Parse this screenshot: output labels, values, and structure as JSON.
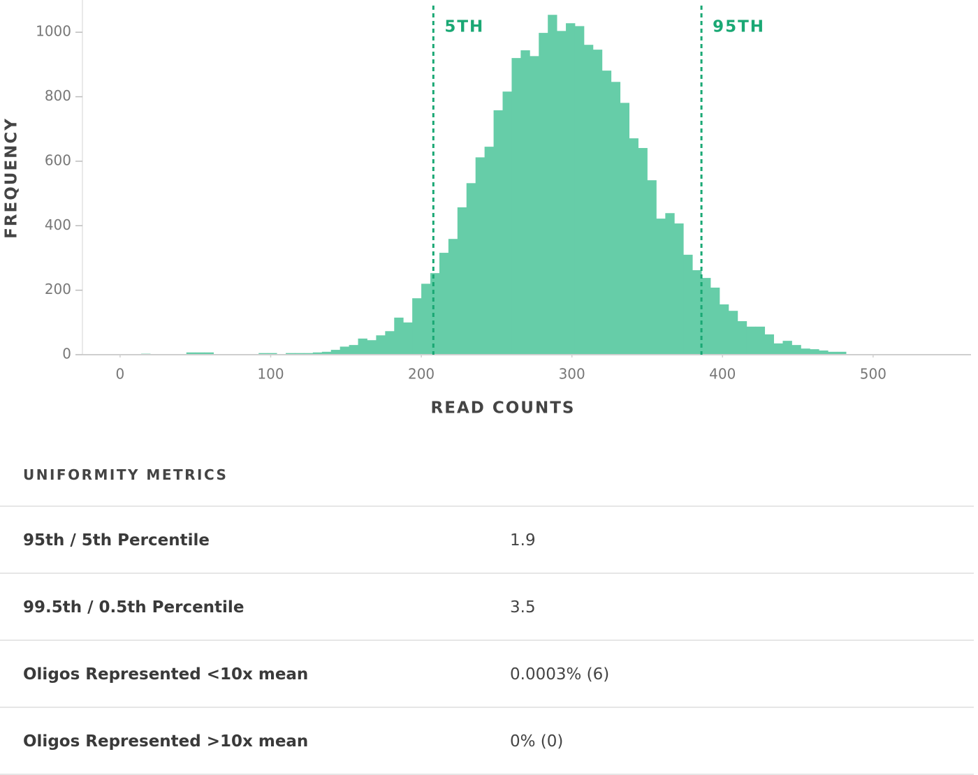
{
  "chart_data": {
    "type": "histogram",
    "xlabel": "READ COUNTS",
    "ylabel": "FREQUENCY",
    "color": "#66cda8",
    "bins": [
      2,
      8,
      14,
      20,
      26,
      32,
      38,
      44,
      50,
      56,
      62,
      68,
      74,
      80,
      86,
      92,
      98,
      104,
      110,
      116,
      122,
      128,
      134,
      140,
      146,
      152,
      158,
      164,
      170,
      176,
      182,
      188,
      194,
      200,
      206,
      212,
      218,
      224,
      230,
      236,
      242,
      248,
      254,
      260,
      266,
      272,
      278,
      284,
      290,
      296,
      302,
      308,
      314,
      320,
      326,
      332,
      338,
      344,
      350,
      356,
      362,
      368,
      374,
      380,
      386,
      392,
      398,
      404,
      410,
      416,
      422,
      428,
      434,
      440,
      446,
      452,
      458,
      464,
      470,
      476,
      482,
      488,
      494,
      500
    ],
    "values": [
      0,
      0,
      3,
      0,
      0,
      2,
      2,
      7,
      7,
      7,
      0,
      0,
      2,
      2,
      0,
      5,
      5,
      2,
      5,
      5,
      5,
      7,
      9,
      15,
      25,
      30,
      50,
      45,
      60,
      73,
      115,
      100,
      175,
      220,
      253,
      316,
      359,
      457,
      532,
      612,
      645,
      758,
      816,
      920,
      944,
      926,
      998,
      1054,
      1004,
      1028,
      1019,
      961,
      946,
      881,
      846,
      781,
      671,
      641,
      541,
      422,
      439,
      407,
      310,
      262,
      238,
      208,
      156,
      136,
      104,
      87,
      87,
      63,
      35,
      43,
      30,
      19,
      17,
      13,
      9,
      9,
      2,
      2,
      0
    ],
    "xlim": [
      -25,
      565
    ],
    "ylim": [
      0,
      1100
    ],
    "xticks": [
      0,
      100,
      200,
      300,
      400,
      500
    ],
    "yticks": [
      0,
      200,
      400,
      600,
      800,
      1000
    ],
    "annotations": [
      {
        "label": "5TH",
        "x": 208,
        "color": "#1aa874"
      },
      {
        "label": "95TH",
        "x": 386,
        "color": "#1aa874"
      }
    ]
  },
  "table": {
    "header": "UNIFORMITY METRICS",
    "rows": [
      [
        "95th / 5th Percentile",
        "1.9"
      ],
      [
        "99.5th / 0.5th Percentile",
        "3.5"
      ],
      [
        "Oligos Represented <10x mean",
        "0.0003% (6)"
      ],
      [
        "Oligos Represented >10x mean",
        "0% (0)"
      ]
    ]
  }
}
